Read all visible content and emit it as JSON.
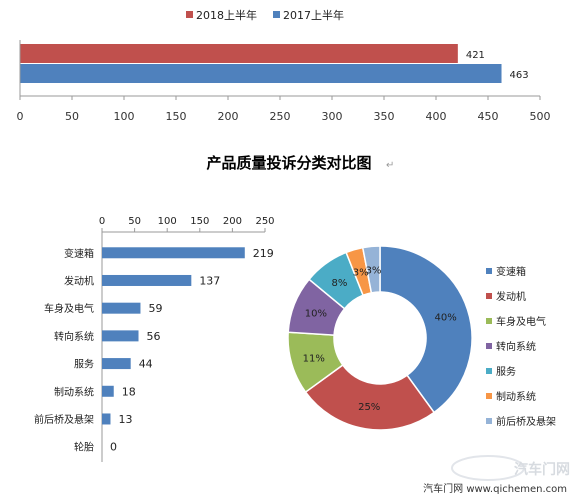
{
  "top_chart": {
    "chart_data": {
      "type": "bar",
      "orientation": "horizontal",
      "series": [
        {
          "name": "2018上半年",
          "values": [
            421
          ],
          "color": "#C0504D"
        },
        {
          "name": "2017上半年",
          "values": [
            463
          ],
          "color": "#4F81BD"
        }
      ],
      "xlim": [
        0,
        500
      ],
      "ticks": [
        "0",
        "50",
        "100",
        "150",
        "200",
        "250",
        "300",
        "350",
        "400",
        "450",
        "500"
      ],
      "legend_position": "top"
    }
  },
  "title": "产品质量投诉分类对比图",
  "title_mark": "↵",
  "bar_chart": {
    "chart_data": {
      "type": "bar",
      "orientation": "horizontal",
      "categories": [
        "变速箱",
        "发动机",
        "车身及电气",
        "转向系统",
        "服务",
        "制动系统",
        "前后桥及悬架",
        "轮胎"
      ],
      "values": [
        219,
        137,
        59,
        56,
        44,
        18,
        13,
        0
      ],
      "color": "#4F81BD",
      "xlim": [
        0,
        250
      ],
      "ticks": [
        "0",
        "50",
        "100",
        "150",
        "200",
        "250"
      ],
      "axis_position": "top"
    }
  },
  "donut_chart": {
    "chart_data": {
      "type": "pie",
      "style": "donut",
      "categories": [
        "变速箱",
        "发动机",
        "车身及电气",
        "转向系统",
        "服务",
        "制动系统",
        "前后桥及悬架"
      ],
      "values": [
        40,
        25,
        11,
        10,
        8,
        3,
        3
      ],
      "labels": [
        "40%",
        "25%",
        "11%",
        "10%",
        "8%",
        "3%",
        "3%"
      ],
      "colors": [
        "#4F81BD",
        "#C0504D",
        "#9BBB59",
        "#8064A2",
        "#4BACC6",
        "#F79646",
        "#95B3D7"
      ],
      "legend_position": "right"
    }
  },
  "watermark": "汽车门网",
  "footer": "汽车门网 www.qichemen.com"
}
